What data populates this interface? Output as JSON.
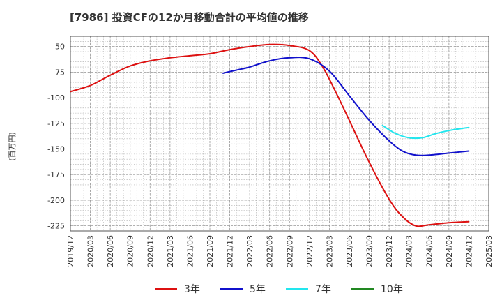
{
  "chart_data": {
    "type": "line",
    "title": "[7986]  投資CFの12か月移動合計の平均値の推移",
    "ylabel": "(百万円)",
    "xlabel": "",
    "ylim": [
      -230,
      -40
    ],
    "yticks": [
      -50,
      -75,
      -100,
      -125,
      -150,
      -175,
      -200,
      -225
    ],
    "xticks": [
      "2019/12",
      "2020/03",
      "2020/06",
      "2020/09",
      "2020/12",
      "2021/03",
      "2021/06",
      "2021/09",
      "2021/12",
      "2022/03",
      "2022/06",
      "2022/09",
      "2022/12",
      "2023/03",
      "2023/06",
      "2023/09",
      "2023/12",
      "2024/03",
      "2024/06",
      "2024/09",
      "2024/12",
      "2025/03"
    ],
    "grid": true,
    "legend_position": "bottom",
    "series": [
      {
        "name": "3年",
        "color": "#dd1111",
        "x": [
          "2019/12",
          "2020/03",
          "2020/06",
          "2020/09",
          "2020/12",
          "2021/03",
          "2021/06",
          "2021/09",
          "2021/12",
          "2022/03",
          "2022/06",
          "2022/09",
          "2022/12",
          "2023/02",
          "2023/04",
          "2023/06",
          "2023/09",
          "2023/12",
          "2024/02",
          "2024/04",
          "2024/06",
          "2024/09",
          "2024/12"
        ],
        "y": [
          -94,
          -88,
          -78,
          -69,
          -64,
          -61,
          -59,
          -57,
          -53,
          -50,
          -48,
          -49,
          -54,
          -70,
          -95,
          -122,
          -163,
          -199,
          -216,
          -225,
          -224,
          -222,
          -221
        ]
      },
      {
        "name": "5年",
        "color": "#1111cc",
        "x": [
          "2021/11",
          "2022/01",
          "2022/03",
          "2022/06",
          "2022/09",
          "2022/12",
          "2023/03",
          "2023/06",
          "2023/09",
          "2023/12",
          "2024/02",
          "2024/04",
          "2024/06",
          "2024/09",
          "2024/12"
        ],
        "y": [
          -76,
          -73,
          -70,
          -64,
          -61,
          -62,
          -74,
          -98,
          -122,
          -142,
          -152,
          -156,
          -156,
          -154,
          -152
        ]
      },
      {
        "name": "7年",
        "color": "#22e6ee",
        "x": [
          "2023/11",
          "2024/01",
          "2024/03",
          "2024/05",
          "2024/07",
          "2024/09",
          "2024/12"
        ],
        "y": [
          -127,
          -135,
          -139,
          -139,
          -135,
          -132,
          -129
        ]
      },
      {
        "name": "10年",
        "color": "#228822",
        "x": [],
        "y": []
      }
    ]
  }
}
